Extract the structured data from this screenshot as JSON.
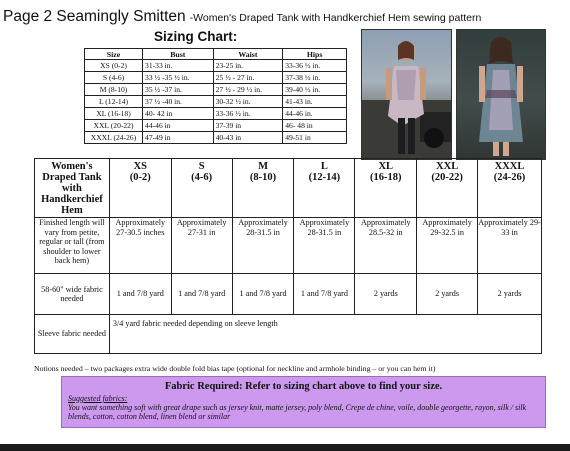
{
  "header": {
    "title": "Page 2 Seamingly Smitten",
    "subtitle": "-Women's Draped Tank with Handkerchief Hem sewing pattern"
  },
  "sizing_chart": {
    "title": "Sizing Chart:",
    "headers": [
      "Size",
      "Bust",
      "Waist",
      "Hips"
    ],
    "rows": [
      [
        "XS (0-2)",
        "31-33 in.",
        "23-25 in.",
        "33-36 ½ in."
      ],
      [
        "S (4-6)",
        "33 ½ -35 ½ in.",
        "25 ½ - 27 in.",
        "37-38 ½ in."
      ],
      [
        "M (8-10)",
        "35 ½ -37 in.",
        "27 ½ - 29 ½ in.",
        "39-40 ½ in."
      ],
      [
        "L (12-14)",
        "37 ½ -40 in.",
        "30-32 ½ in.",
        "41-43 in."
      ],
      [
        "XL (16-18)",
        "40- 42 in",
        "33-36 ½ in.",
        "44-46 in."
      ],
      [
        "XXL (20-22)",
        "44-46 in",
        "37-39 in",
        "46- 48 in"
      ],
      [
        "XXXL (24-26)",
        "47-49 in",
        "40-43 in",
        "49-51 in"
      ]
    ]
  },
  "main_table": {
    "corner_header": "Women's Draped Tank with Handkerchief Hem",
    "columns": [
      {
        "size": "XS",
        "range": "(0-2)"
      },
      {
        "size": "S",
        "range": "(4-6)"
      },
      {
        "size": "M",
        "range": "(8-10)"
      },
      {
        "size": "L",
        "range": "(12-14)"
      },
      {
        "size": "XL",
        "range": "(16-18)"
      },
      {
        "size": "XXL",
        "range": "(20-22)"
      },
      {
        "size": "XXXL",
        "range": "(24-26)"
      }
    ],
    "length_label": "Finished length will vary from petite, regular or tall (from shoulder to lower back hem)",
    "length_values": [
      "Approximately 27-30.5 inches",
      "Approximately 27-31 in",
      "Approximately 28-31.5 in",
      "Approximately 28-31.5 in",
      "Approximately 28.5-32 in",
      "Approximately 29-32.5 in",
      "Approximately 29-33 in"
    ],
    "fabric_label": "58-60\" wide fabric needed",
    "fabric_values": [
      "1 and 7/8 yard",
      "1 and 7/8 yard",
      "1 and 7/8 yard",
      "1 and 7/8 yard",
      "2 yards",
      "2 yards",
      "2 yards"
    ],
    "sleeve_label": "Sleeve fabric needed",
    "sleeve_value": "3/4 yard fabric needed depending on sleeve length"
  },
  "notions": "Notions needed – two packages extra wide double fold bias tape (optional for neckline and armhole binding – or you can hem it)",
  "fabric_box": {
    "title": "Fabric Required: Refer to sizing chart above to find your size.",
    "label": "Suggested fabrics:",
    "text": "You want something soft with great drape such as jersey knit, matte jersey, poly blend, Crepe de chine, voile, double georgette, rayon, silk / silk blends, cotton, cotton blend, linen blend or similar"
  },
  "colors": {
    "fabric_box_bg": "#cc99ee"
  }
}
